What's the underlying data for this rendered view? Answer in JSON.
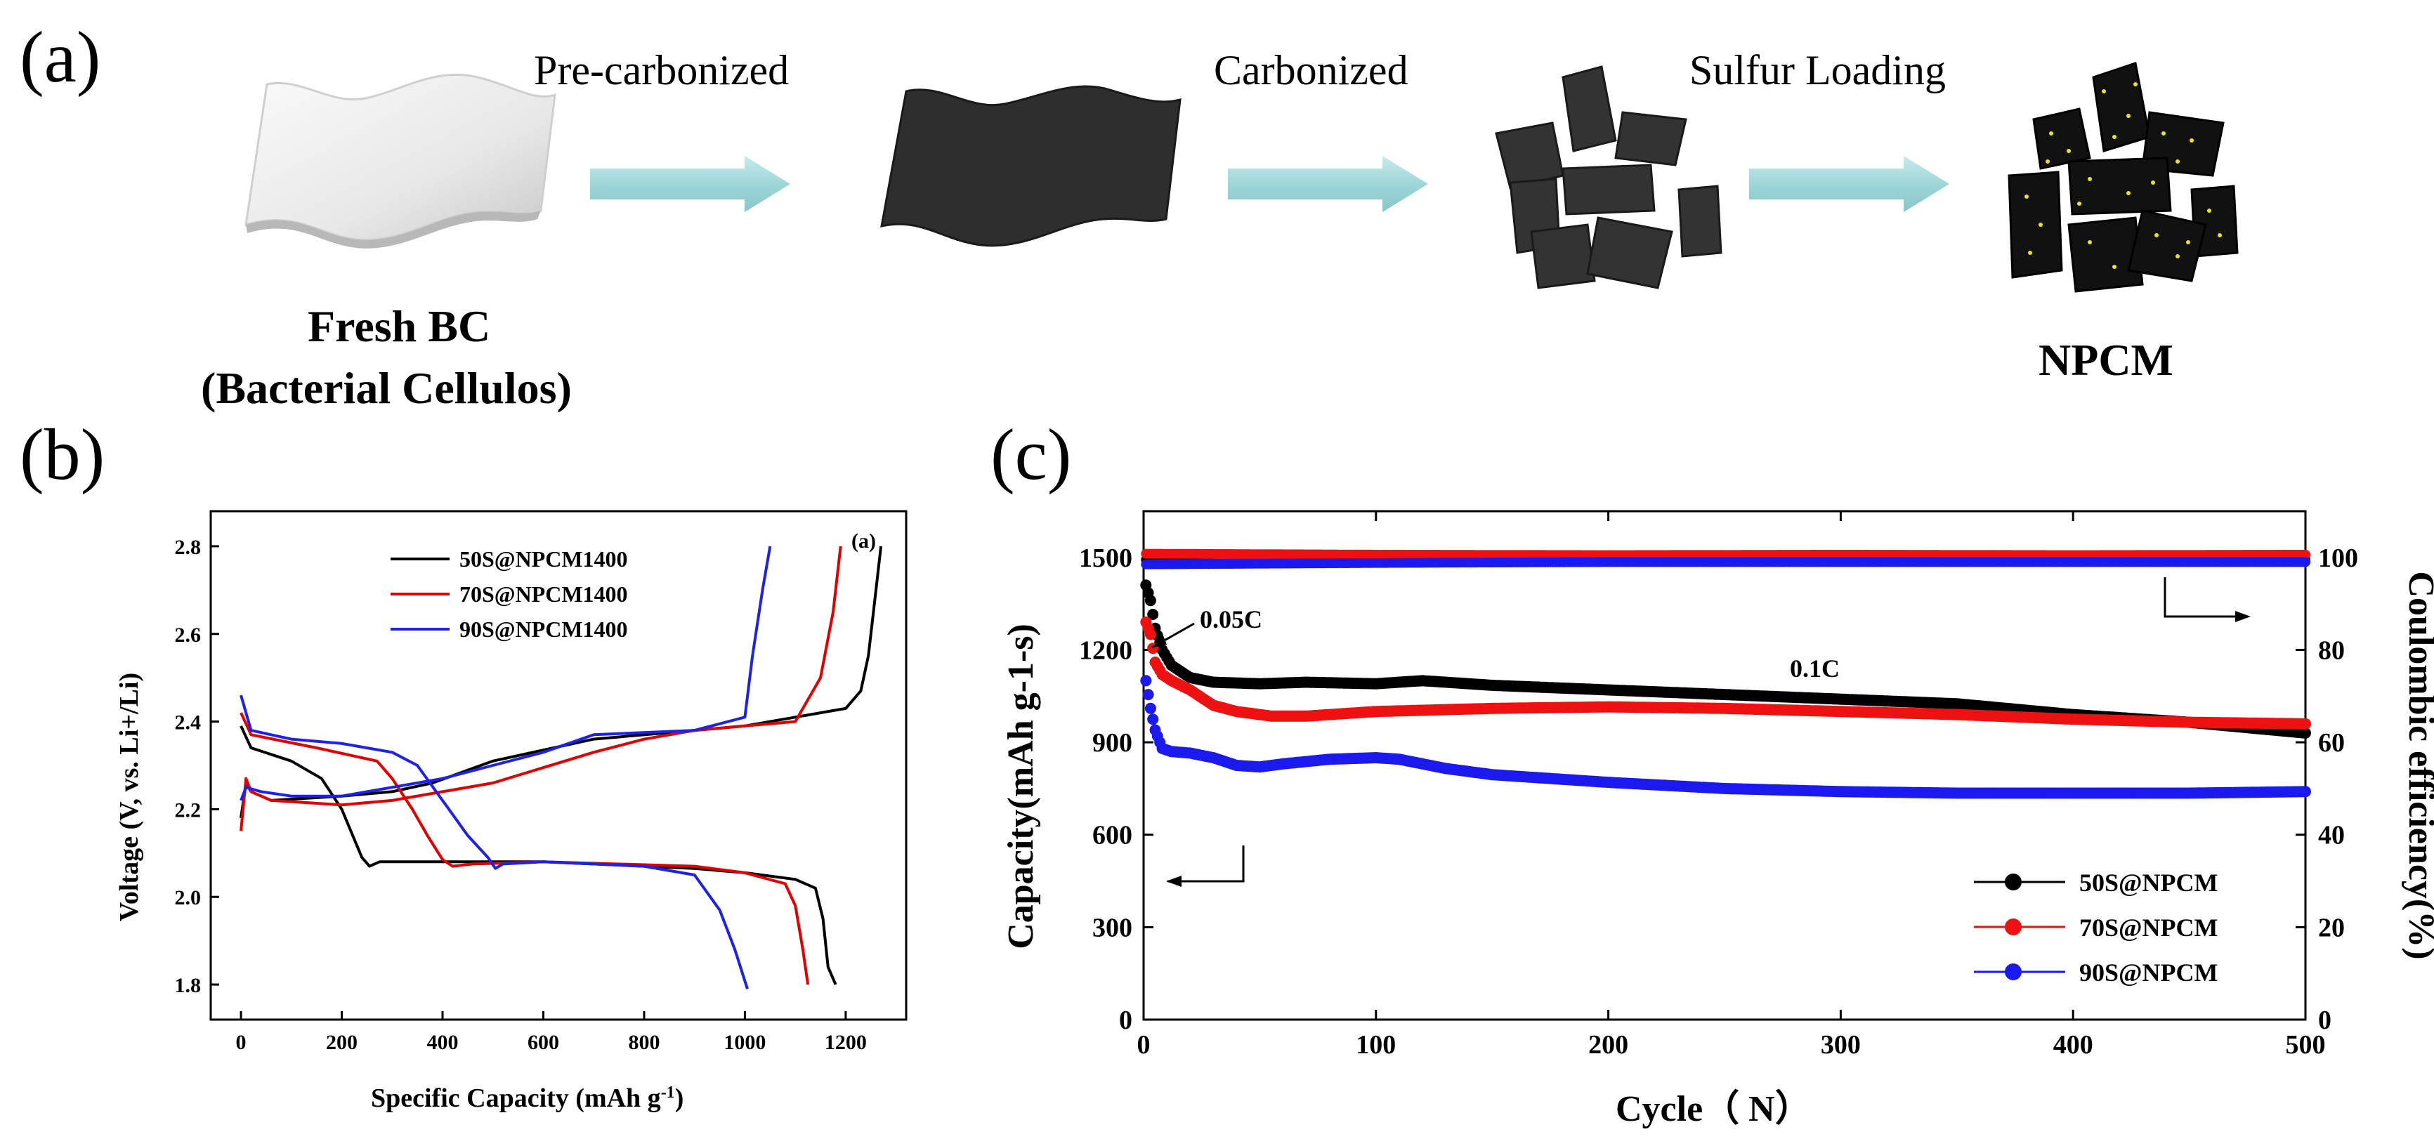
{
  "panel_a": {
    "label": "(a)",
    "steps": [
      "Pre-carbonized",
      "Carbonized",
      "Sulfur Loading"
    ],
    "start_line1": "Fresh BC",
    "start_line2": "(Bacterial Cellulos)",
    "end_label": "NPCM",
    "colors": {
      "arrow": "#9fd6d8",
      "carbon": "#2b2b2b",
      "sulfur": "#e6e61a"
    }
  },
  "chart_data": [
    {
      "id": "b",
      "type": "line",
      "panel_label": "(b)",
      "corner_label": "(a)",
      "xlabel": "Specific Capacity (mAh g",
      "xlabel_sup": "-1",
      "xlabel_end": ")",
      "ylabel": "Voltage (V, vs. Li+/Li)",
      "xlim": [
        -60,
        1320
      ],
      "ylim": [
        1.72,
        2.88
      ],
      "xticks": [
        0,
        200,
        400,
        600,
        800,
        1000,
        1200
      ],
      "yticks": [
        1.8,
        2.0,
        2.2,
        2.4,
        2.6,
        2.8
      ],
      "legend_position": "top-left",
      "series": [
        {
          "name": "50S@NPCM1400",
          "color": "#000000",
          "discharge": [
            [
              0,
              2.39
            ],
            [
              20,
              2.34
            ],
            [
              100,
              2.31
            ],
            [
              160,
              2.27
            ],
            [
              200,
              2.2
            ],
            [
              240,
              2.09
            ],
            [
              255,
              2.07
            ],
            [
              275,
              2.08
            ],
            [
              400,
              2.08
            ],
            [
              600,
              2.08
            ],
            [
              900,
              2.065
            ],
            [
              1000,
              2.055
            ],
            [
              1100,
              2.04
            ],
            [
              1140,
              2.02
            ],
            [
              1155,
              1.95
            ],
            [
              1165,
              1.84
            ],
            [
              1180,
              1.8
            ]
          ],
          "charge": [
            [
              0,
              2.18
            ],
            [
              10,
              2.26
            ],
            [
              20,
              2.24
            ],
            [
              60,
              2.22
            ],
            [
              200,
              2.23
            ],
            [
              300,
              2.24
            ],
            [
              380,
              2.26
            ],
            [
              500,
              2.31
            ],
            [
              700,
              2.36
            ],
            [
              900,
              2.38
            ],
            [
              1000,
              2.39
            ],
            [
              1100,
              2.41
            ],
            [
              1200,
              2.43
            ],
            [
              1230,
              2.47
            ],
            [
              1245,
              2.55
            ],
            [
              1260,
              2.7
            ],
            [
              1270,
              2.8
            ]
          ]
        },
        {
          "name": "70S@NPCM1400",
          "color": "#e00000",
          "discharge": [
            [
              0,
              2.42
            ],
            [
              20,
              2.37
            ],
            [
              150,
              2.34
            ],
            [
              270,
              2.31
            ],
            [
              300,
              2.27
            ],
            [
              340,
              2.2
            ],
            [
              370,
              2.14
            ],
            [
              400,
              2.085
            ],
            [
              420,
              2.07
            ],
            [
              460,
              2.075
            ],
            [
              600,
              2.08
            ],
            [
              900,
              2.07
            ],
            [
              1000,
              2.055
            ],
            [
              1080,
              2.03
            ],
            [
              1100,
              1.98
            ],
            [
              1115,
              1.88
            ],
            [
              1125,
              1.8
            ]
          ],
          "charge": [
            [
              0,
              2.15
            ],
            [
              10,
              2.27
            ],
            [
              20,
              2.24
            ],
            [
              60,
              2.22
            ],
            [
              200,
              2.21
            ],
            [
              300,
              2.22
            ],
            [
              400,
              2.24
            ],
            [
              500,
              2.26
            ],
            [
              700,
              2.33
            ],
            [
              800,
              2.36
            ],
            [
              900,
              2.38
            ],
            [
              1000,
              2.39
            ],
            [
              1100,
              2.4
            ],
            [
              1150,
              2.5
            ],
            [
              1175,
              2.65
            ],
            [
              1190,
              2.8
            ]
          ]
        },
        {
          "name": "90S@NPCM1400",
          "color": "#1e22e8",
          "discharge": [
            [
              0,
              2.46
            ],
            [
              20,
              2.38
            ],
            [
              100,
              2.36
            ],
            [
              200,
              2.35
            ],
            [
              300,
              2.33
            ],
            [
              350,
              2.3
            ],
            [
              400,
              2.22
            ],
            [
              450,
              2.14
            ],
            [
              490,
              2.09
            ],
            [
              505,
              2.065
            ],
            [
              520,
              2.075
            ],
            [
              600,
              2.08
            ],
            [
              800,
              2.07
            ],
            [
              900,
              2.05
            ],
            [
              950,
              1.97
            ],
            [
              980,
              1.88
            ],
            [
              1005,
              1.79
            ]
          ],
          "charge": [
            [
              0,
              2.22
            ],
            [
              10,
              2.25
            ],
            [
              40,
              2.24
            ],
            [
              100,
              2.23
            ],
            [
              200,
              2.23
            ],
            [
              300,
              2.25
            ],
            [
              400,
              2.27
            ],
            [
              500,
              2.3
            ],
            [
              600,
              2.33
            ],
            [
              700,
              2.37
            ],
            [
              900,
              2.38
            ],
            [
              1000,
              2.41
            ],
            [
              1015,
              2.55
            ],
            [
              1035,
              2.7
            ],
            [
              1050,
              2.8
            ]
          ]
        }
      ]
    },
    {
      "id": "c",
      "type": "scatter",
      "panel_label": "(c)",
      "xlabel": "Cycle（  N）",
      "ylabel": "Capacity(mAh g-1-s)",
      "y2label": "Coulombic efficiency(%)",
      "xlim": [
        0,
        500
      ],
      "ylim": [
        0,
        1650
      ],
      "y2lim": [
        0,
        110
      ],
      "xticks": [
        0,
        100,
        200,
        300,
        400,
        500
      ],
      "yticks": [
        0,
        300,
        600,
        900,
        1200,
        1500
      ],
      "y2ticks": [
        0,
        20,
        40,
        60,
        80,
        100
      ],
      "annotations": [
        "0.05C",
        "0.1C"
      ],
      "legend_position": "bottom-right",
      "series": [
        {
          "name": "50S@NPCM",
          "color": "#000000",
          "capacity": [
            [
              1,
              1410
            ],
            [
              3,
              1360
            ],
            [
              5,
              1270
            ],
            [
              8,
              1200
            ],
            [
              12,
              1150
            ],
            [
              20,
              1110
            ],
            [
              30,
              1095
            ],
            [
              50,
              1090
            ],
            [
              70,
              1095
            ],
            [
              100,
              1090
            ],
            [
              120,
              1100
            ],
            [
              150,
              1085
            ],
            [
              200,
              1070
            ],
            [
              250,
              1055
            ],
            [
              300,
              1040
            ],
            [
              350,
              1025
            ],
            [
              400,
              990
            ],
            [
              450,
              965
            ],
            [
              500,
              930
            ]
          ],
          "efficiency": [
            [
              1,
              99.5
            ],
            [
              100,
              99.6
            ],
            [
              200,
              99.7
            ],
            [
              300,
              99.7
            ],
            [
              400,
              99.6
            ],
            [
              500,
              99.6
            ]
          ]
        },
        {
          "name": "70S@NPCM",
          "color": "#ee1111",
          "capacity": [
            [
              1,
              1290
            ],
            [
              3,
              1250
            ],
            [
              5,
              1160
            ],
            [
              8,
              1120
            ],
            [
              12,
              1100
            ],
            [
              20,
              1070
            ],
            [
              30,
              1020
            ],
            [
              40,
              1000
            ],
            [
              55,
              985
            ],
            [
              70,
              985
            ],
            [
              100,
              1000
            ],
            [
              150,
              1010
            ],
            [
              200,
              1015
            ],
            [
              250,
              1010
            ],
            [
              300,
              1000
            ],
            [
              350,
              990
            ],
            [
              400,
              975
            ],
            [
              450,
              965
            ],
            [
              500,
              960
            ]
          ],
          "efficiency": [
            [
              1,
              100.8
            ],
            [
              100,
              100.6
            ],
            [
              200,
              100.5
            ],
            [
              300,
              100.6
            ],
            [
              400,
              100.5
            ],
            [
              500,
              100.6
            ]
          ]
        },
        {
          "name": "90S@NPCM",
          "color": "#1a1aee",
          "capacity": [
            [
              1,
              1100
            ],
            [
              3,
              1010
            ],
            [
              5,
              940
            ],
            [
              8,
              880
            ],
            [
              12,
              870
            ],
            [
              20,
              865
            ],
            [
              30,
              850
            ],
            [
              40,
              825
            ],
            [
              50,
              820
            ],
            [
              60,
              830
            ],
            [
              80,
              845
            ],
            [
              100,
              850
            ],
            [
              110,
              845
            ],
            [
              130,
              815
            ],
            [
              150,
              795
            ],
            [
              200,
              770
            ],
            [
              250,
              750
            ],
            [
              300,
              740
            ],
            [
              350,
              735
            ],
            [
              400,
              735
            ],
            [
              450,
              735
            ],
            [
              500,
              740
            ]
          ],
          "efficiency": [
            [
              1,
              98.5
            ],
            [
              100,
              98.8
            ],
            [
              200,
              99.0
            ],
            [
              300,
              99.0
            ],
            [
              400,
              99.0
            ],
            [
              500,
              99.0
            ]
          ]
        }
      ]
    }
  ]
}
